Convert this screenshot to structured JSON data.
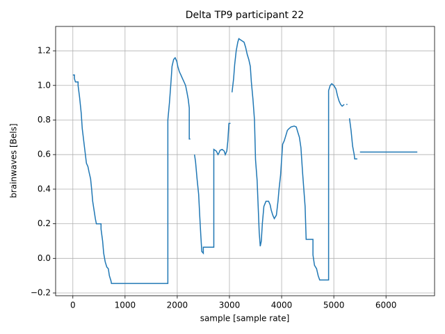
{
  "chart_data": {
    "type": "line",
    "title": "Delta TP9 participant 22",
    "x_label": "sample [sample rate]",
    "y_label": "brainwaves [Bels]",
    "xlim": [
      -330,
      6930
    ],
    "ylim": [
      -0.216,
      1.341
    ],
    "xticks": [
      0,
      1000,
      2000,
      3000,
      4000,
      5000,
      6000
    ],
    "yticks": [
      {
        "value": -0.2,
        "label": "−0.2"
      },
      {
        "value": 0,
        "label": "0.0"
      },
      0.2,
      0.4,
      0.6,
      0.8,
      {
        "value": 1,
        "label": "1.0"
      },
      1.2
    ],
    "grid": true,
    "series": [
      {
        "color": "#1f77b4",
        "x": [
          0,
          30,
          30,
          50,
          100,
          100,
          130,
          160,
          180,
          200,
          220,
          240,
          260,
          290,
          310,
          340,
          360,
          380,
          410,
          430,
          450,
          540,
          540,
          570,
          590,
          620,
          650,
          680,
          700,
          730,
          740,
          1820,
          1820,
          1850,
          1880,
          1900,
          1930,
          1960,
          1990,
          2010,
          2040,
          2070,
          2100,
          2130,
          2160,
          2180,
          2210,
          2230,
          2230,
          2250,
          null,
          2330,
          2350,
          2380,
          2410,
          2430,
          2450,
          2470,
          2500,
          2500,
          2700,
          2700,
          2750,
          2780,
          2800,
          2820,
          2860,
          2900,
          2920,
          2950,
          2970,
          2990,
          3020,
          null,
          3050,
          3080,
          3100,
          3130,
          3160,
          3180,
          3230,
          3280,
          3310,
          3340,
          3370,
          3400,
          3420,
          3450,
          3480,
          3500,
          3530,
          3550,
          3570,
          3590,
          3610,
          3630,
          3660,
          3700,
          3750,
          3780,
          3800,
          3830,
          3860,
          3900,
          3930,
          3950,
          3980,
          4000,
          4020,
          4050,
          4080,
          4110,
          4140,
          4180,
          4240,
          4280,
          4310,
          4340,
          4370,
          4400,
          4450,
          4470,
          4600,
          4600,
          4630,
          4670,
          4700,
          4730,
          4900,
          4900,
          4930,
          4960,
          5000,
          5040,
          5070,
          5100,
          5130,
          5160,
          5200,
          null,
          5240,
          5260,
          null,
          5300,
          5330,
          5360,
          5390,
          5400,
          5450,
          null,
          5500,
          6600
        ],
        "values": [
          1.06,
          1.06,
          1.04,
          1.02,
          1.02,
          1.0,
          0.93,
          0.84,
          0.75,
          0.7,
          0.65,
          0.6,
          0.55,
          0.53,
          0.5,
          0.46,
          0.4,
          0.33,
          0.27,
          0.23,
          0.2,
          0.2,
          0.17,
          0.1,
          0.03,
          -0.02,
          -0.05,
          -0.06,
          -0.1,
          -0.13,
          -0.145,
          -0.145,
          0.8,
          0.9,
          1.02,
          1.11,
          1.15,
          1.16,
          1.14,
          1.11,
          1.08,
          1.06,
          1.04,
          1.02,
          1.0,
          0.97,
          0.92,
          0.87,
          0.69,
          0.69,
          null,
          0.6,
          0.56,
          0.46,
          0.37,
          0.25,
          0.14,
          0.04,
          0.03,
          0.065,
          0.065,
          0.63,
          0.62,
          0.6,
          0.61,
          0.625,
          0.63,
          0.62,
          0.6,
          0.62,
          0.68,
          0.78,
          0.78,
          null,
          0.96,
          1.04,
          1.12,
          1.2,
          1.25,
          1.27,
          1.26,
          1.25,
          1.22,
          1.18,
          1.15,
          1.11,
          1.02,
          0.92,
          0.8,
          0.57,
          0.45,
          0.3,
          0.15,
          0.07,
          0.1,
          0.2,
          0.3,
          0.33,
          0.33,
          0.31,
          0.28,
          0.25,
          0.23,
          0.25,
          0.33,
          0.4,
          0.48,
          0.57,
          0.66,
          0.68,
          0.71,
          0.74,
          0.75,
          0.76,
          0.765,
          0.76,
          0.73,
          0.7,
          0.64,
          0.5,
          0.3,
          0.11,
          0.11,
          0.02,
          -0.04,
          -0.06,
          -0.1,
          -0.125,
          -0.125,
          0.97,
          1.0,
          1.01,
          1.0,
          0.98,
          0.94,
          0.91,
          0.89,
          0.88,
          0.89,
          null,
          0.89,
          0.89,
          null,
          0.81,
          0.74,
          0.65,
          0.6,
          0.575,
          0.575,
          null,
          0.615,
          0.615
        ]
      }
    ]
  }
}
